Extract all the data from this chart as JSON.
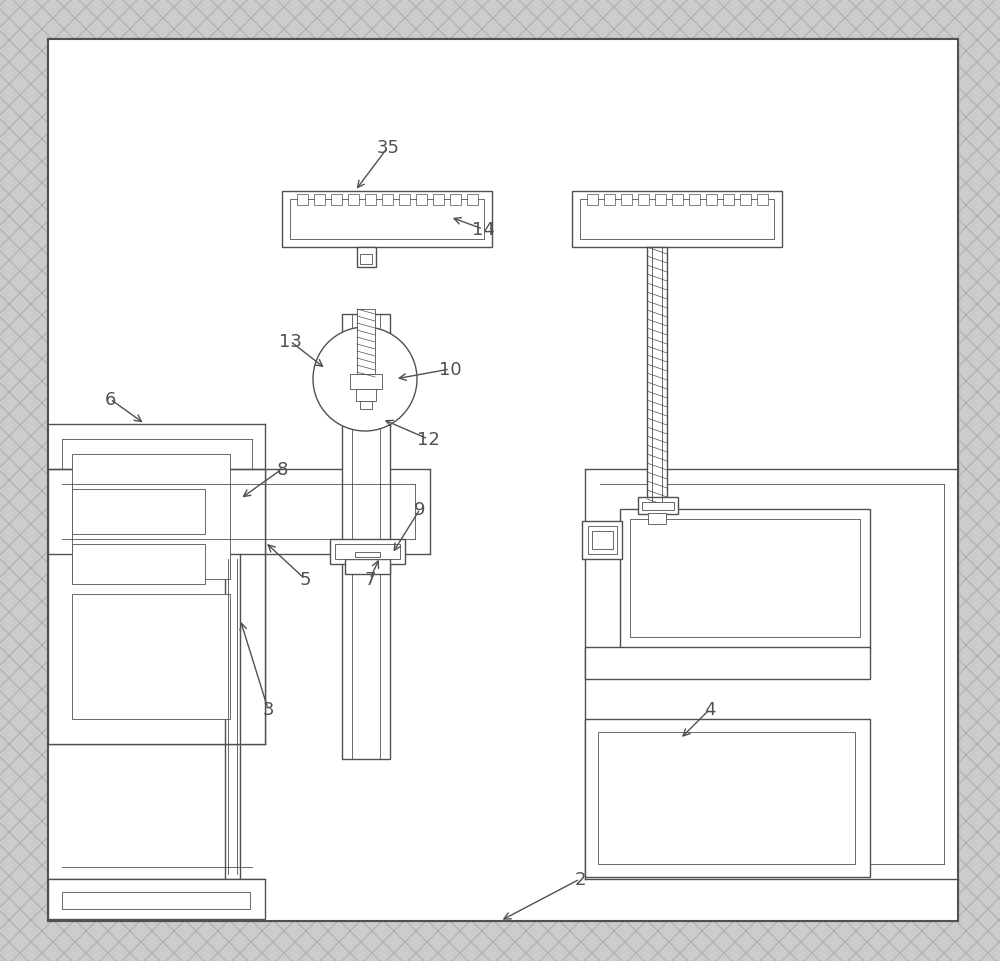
{
  "line_color": "#505050",
  "line_width": 1.0,
  "thin_line": 0.6,
  "fig_width": 10.0,
  "fig_height": 9.62,
  "hatch_bg": "#cccccc",
  "hatch_line": "#aaaaaa",
  "inner_bg": "#ffffff"
}
